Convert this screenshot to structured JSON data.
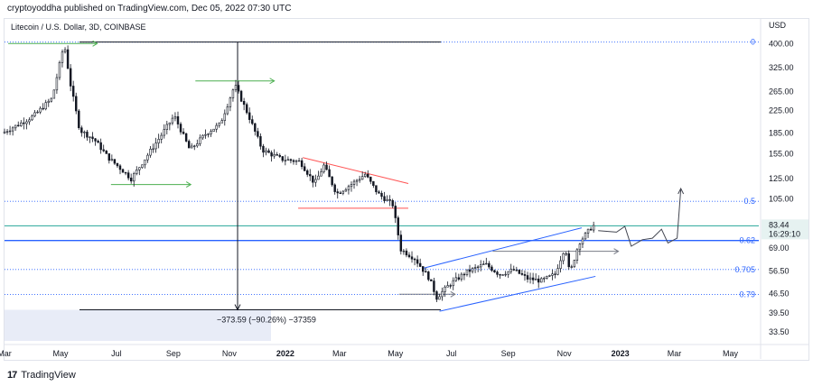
{
  "header": {
    "text": "cryptoyoddha published on TradingView.com, Dec 05, 2022 07:30 UTC"
  },
  "symbol": {
    "text": "Litecoin / U.S. Dollar, 3D, COINBASE"
  },
  "footer": {
    "logo_mark": "17",
    "brand": "TradingView"
  },
  "colors": {
    "up": "#131722",
    "down": "#131722",
    "fib": "#2962ff",
    "channel": "#2962ff",
    "resistance": "#ff5252",
    "arrow_green": "#4caf50",
    "teal": "#26a69a",
    "crosshair": "#131722",
    "shade": "#e8ecf7"
  },
  "chart_data": {
    "type": "candlestick",
    "title": "Litecoin / U.S. Dollar, 3D, COINBASE",
    "price_axis_label": "USD",
    "scale": "log",
    "ylim": [
      31,
      440
    ],
    "xlim": [
      "2021-03-01",
      "2023-06-01"
    ],
    "x_ticks": [
      "Mar",
      "May",
      "Jul",
      "Sep",
      "Nov",
      "2022",
      "Mar",
      "May",
      "Jul",
      "Sep",
      "Nov",
      "2023",
      "Mar",
      "May"
    ],
    "y_ticks": [
      400.0,
      325.0,
      265.0,
      225.0,
      185.0,
      155.0,
      125.0,
      105.0,
      69.0,
      56.5,
      46.5,
      39.5,
      33.5
    ],
    "current_price": {
      "label": "83.44",
      "value": 83.44,
      "countdown": "16:29:10"
    },
    "fib_levels": [
      {
        "label": "0",
        "price": 405
      },
      {
        "label": "0.5",
        "price": 103
      },
      {
        "label": "0.62",
        "price": 73.5
      },
      {
        "label": "0.705",
        "price": 57.3
      },
      {
        "label": "0.79",
        "price": 46.2
      }
    ],
    "measure_label": "−373.59 (−90.26%) −37359",
    "keypoints": [
      {
        "date": "2021-03-01",
        "price": 185
      },
      {
        "date": "2021-03-20",
        "price": 200
      },
      {
        "date": "2021-04-05",
        "price": 215
      },
      {
        "date": "2021-04-25",
        "price": 250
      },
      {
        "date": "2021-05-08",
        "price": 400
      },
      {
        "date": "2021-05-15",
        "price": 280
      },
      {
        "date": "2021-05-25",
        "price": 190
      },
      {
        "date": "2021-06-10",
        "price": 175
      },
      {
        "date": "2021-06-25",
        "price": 150
      },
      {
        "date": "2021-07-10",
        "price": 135
      },
      {
        "date": "2021-07-20",
        "price": 125
      },
      {
        "date": "2021-08-05",
        "price": 150
      },
      {
        "date": "2021-08-20",
        "price": 178
      },
      {
        "date": "2021-09-05",
        "price": 215
      },
      {
        "date": "2021-09-22",
        "price": 160
      },
      {
        "date": "2021-10-10",
        "price": 185
      },
      {
        "date": "2021-10-25",
        "price": 200
      },
      {
        "date": "2021-11-10",
        "price": 280
      },
      {
        "date": "2021-11-25",
        "price": 215
      },
      {
        "date": "2021-12-10",
        "price": 160
      },
      {
        "date": "2021-12-31",
        "price": 148
      },
      {
        "date": "2022-01-20",
        "price": 145
      },
      {
        "date": "2022-02-05",
        "price": 120
      },
      {
        "date": "2022-02-15",
        "price": 140
      },
      {
        "date": "2022-03-01",
        "price": 110
      },
      {
        "date": "2022-03-15",
        "price": 118
      },
      {
        "date": "2022-04-01",
        "price": 130
      },
      {
        "date": "2022-04-15",
        "price": 110
      },
      {
        "date": "2022-05-01",
        "price": 100
      },
      {
        "date": "2022-05-10",
        "price": 68
      },
      {
        "date": "2022-05-25",
        "price": 63
      },
      {
        "date": "2022-06-10",
        "price": 53
      },
      {
        "date": "2022-06-18",
        "price": 45
      },
      {
        "date": "2022-07-01",
        "price": 50
      },
      {
        "date": "2022-07-20",
        "price": 56
      },
      {
        "date": "2022-08-10",
        "price": 60
      },
      {
        "date": "2022-08-25",
        "price": 55
      },
      {
        "date": "2022-09-10",
        "price": 57
      },
      {
        "date": "2022-09-25",
        "price": 53
      },
      {
        "date": "2022-10-10",
        "price": 52
      },
      {
        "date": "2022-10-25",
        "price": 55
      },
      {
        "date": "2022-11-05",
        "price": 70
      },
      {
        "date": "2022-11-10",
        "price": 55
      },
      {
        "date": "2022-11-20",
        "price": 72
      },
      {
        "date": "2022-11-28",
        "price": 78
      },
      {
        "date": "2022-12-05",
        "price": 83.44
      }
    ],
    "annotations": {
      "channel": {
        "lower": [
          [
            "2022-06-18",
            40
          ],
          [
            "2022-12-05",
            54
          ]
        ],
        "upper": [
          [
            "2022-06-01",
            58
          ],
          [
            "2022-11-20",
            82
          ]
        ]
      },
      "triangle": {
        "upper": [
          [
            "2022-01-20",
            150
          ],
          [
            "2022-05-15",
            120
          ]
        ],
        "lower": [
          [
            "2022-01-15",
            97
          ],
          [
            "2022-05-15",
            97
          ]
        ]
      },
      "green_arrows": [
        {
          "from": [
            "2021-03-05",
            400
          ],
          "to": [
            "2021-06-10",
            400
          ]
        },
        {
          "from": [
            "2021-06-25",
            119
          ],
          "to": [
            "2021-09-20",
            119
          ]
        },
        {
          "from": [
            "2021-09-25",
            290
          ],
          "to": [
            "2021-12-20",
            290
          ]
        }
      ],
      "gray_arrows": [
        {
          "from": [
            "2022-05-05",
            46.3
          ],
          "to": [
            "2022-07-05",
            46.3
          ]
        },
        {
          "from": [
            "2022-08-15",
            67
          ],
          "to": [
            "2022-12-30",
            67
          ]
        }
      ],
      "forecast_path": [
        [
          "2022-12-08",
          80
        ],
        [
          "2022-12-28",
          79
        ],
        [
          "2023-01-06",
          83
        ],
        [
          "2023-01-13",
          70
        ],
        [
          "2023-01-25",
          74
        ],
        [
          "2023-02-05",
          75
        ],
        [
          "2023-02-15",
          81
        ],
        [
          "2023-02-22",
          72
        ],
        [
          "2023-03-04",
          75
        ],
        [
          "2023-03-08",
          115
        ]
      ]
    }
  }
}
